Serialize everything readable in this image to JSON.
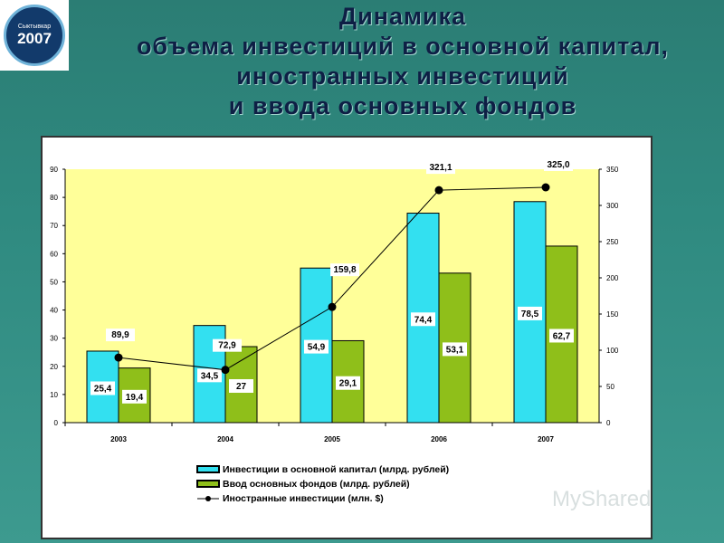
{
  "logo": {
    "city": "Сыктывкар",
    "year": "2007"
  },
  "title": [
    "Динамика",
    "объема инвестиций в основной капитал,",
    "иностранных инвестиций",
    "и ввода основных фондов"
  ],
  "watermark": "MyShared",
  "chart_data": {
    "type": "bar",
    "categories": [
      "2003",
      "2004",
      "2005",
      "2006",
      "2007"
    ],
    "series": [
      {
        "name": "Инвестиции в основной капитал (млрд. рублей)",
        "kind": "bar",
        "axis": "left",
        "color": "#33e0f0",
        "values": [
          25.4,
          34.5,
          54.9,
          74.4,
          78.5
        ],
        "labels": [
          "25,4",
          "34,5",
          "54,9",
          "74,4",
          "78,5"
        ]
      },
      {
        "name": "Ввод основных фондов (млрд. рублей)",
        "kind": "bar",
        "axis": "left",
        "color": "#8fbf1a",
        "values": [
          19.4,
          27,
          29.1,
          53.1,
          62.7
        ],
        "labels": [
          "19,4",
          "27",
          "29,1",
          "53,1",
          "62,7"
        ]
      },
      {
        "name": "Иностранные инвестиции (млн. $)",
        "kind": "line",
        "axis": "right",
        "color": "#000000",
        "values": [
          89.9,
          72.9,
          159.8,
          321.1,
          325.0
        ],
        "labels": [
          "89,9",
          "72,9",
          "159,8",
          "321,1",
          "325,0"
        ]
      }
    ],
    "y_left": {
      "lim": [
        0,
        90
      ],
      "ticks": [
        0,
        10,
        20,
        30,
        40,
        50,
        60,
        70,
        80,
        90
      ]
    },
    "y_right": {
      "lim": [
        0,
        350
      ],
      "ticks": [
        0,
        50,
        100,
        150,
        200,
        250,
        300,
        350
      ]
    },
    "plot_background": "#ffff99",
    "legend": "bottom"
  }
}
